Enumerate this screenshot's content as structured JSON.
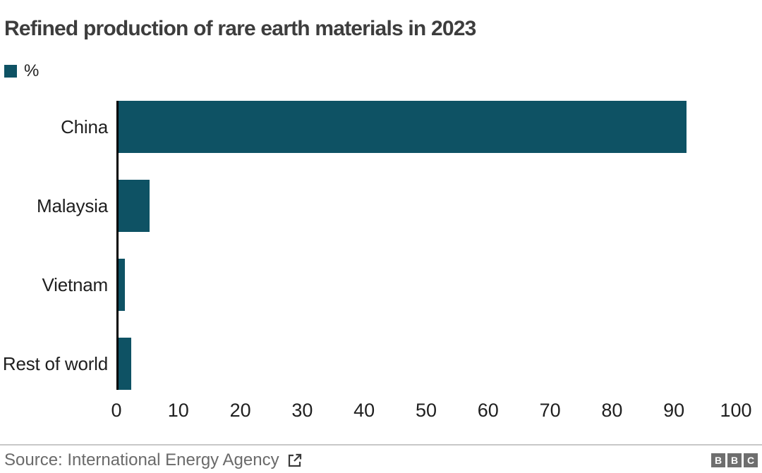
{
  "title": "Refined production of rare earth materials in 2023",
  "legend": {
    "label": "%"
  },
  "chart_data": {
    "type": "bar",
    "orientation": "horizontal",
    "title": "Refined production of rare earth materials in 2023",
    "unit": "%",
    "legend_label": "%",
    "categories": [
      "China",
      "Malaysia",
      "Vietnam",
      "Rest of world"
    ],
    "values": [
      92,
      5,
      1,
      2
    ],
    "xlim": [
      0,
      100
    ],
    "xticks": [
      0,
      10,
      20,
      30,
      40,
      50,
      60,
      70,
      80,
      90,
      100
    ],
    "grid": false,
    "legend_position": "top-left",
    "bar_color": "#0e5264",
    "axis_color": "#000000"
  },
  "footer": {
    "source_label": "Source: International Energy Agency",
    "logo_letters": [
      "B",
      "B",
      "C"
    ]
  },
  "colors": {
    "accent": "#0e5264",
    "title_text": "#3d3d3d",
    "label_text": "#1f1f1f",
    "source_text": "#6a6a6a",
    "divider": "#c8c8c8",
    "logo_bg": "#6e6e6e",
    "axis": "#000000",
    "background": "#ffffff"
  }
}
